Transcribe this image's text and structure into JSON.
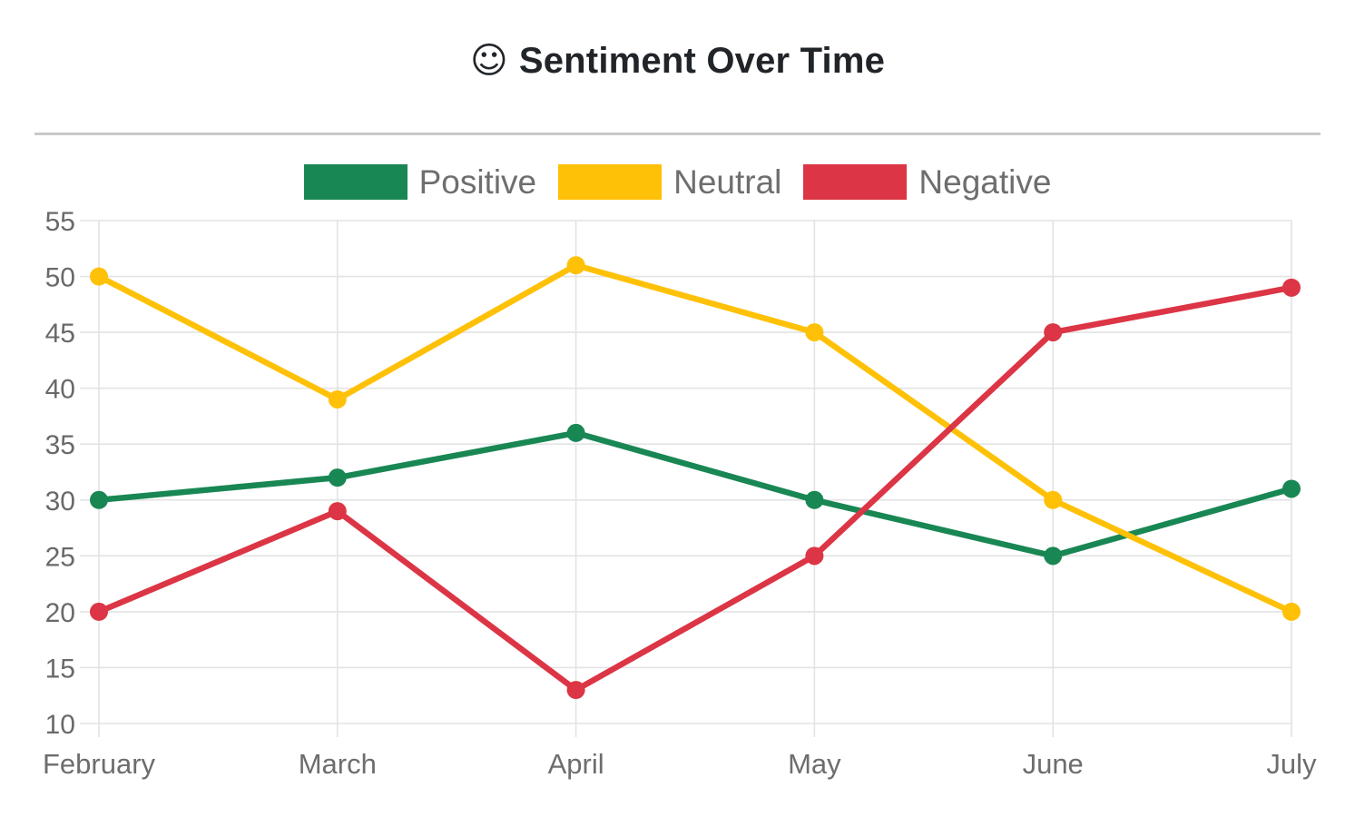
{
  "header": {
    "title_icon": "☺",
    "title": "Sentiment Over Time"
  },
  "chart_data": {
    "type": "line",
    "title": "Sentiment Over Time",
    "categories": [
      "February",
      "March",
      "April",
      "May",
      "June",
      "July"
    ],
    "series": [
      {
        "name": "Positive",
        "color": "#198754",
        "values": [
          30,
          32,
          36,
          30,
          25,
          31
        ]
      },
      {
        "name": "Neutral",
        "color": "#ffc107",
        "values": [
          50,
          39,
          51,
          45,
          30,
          20
        ]
      },
      {
        "name": "Negative",
        "color": "#dc3545",
        "values": [
          20,
          29,
          13,
          25,
          45,
          49
        ]
      }
    ],
    "y_ticks": [
      55,
      50,
      45,
      40,
      35,
      30,
      25,
      20,
      15,
      10
    ],
    "ylim": [
      10,
      55
    ],
    "grid": true,
    "legend_position": "top",
    "axis_text_color": "#6d6d6d",
    "grid_color": "#e3e3e3"
  }
}
